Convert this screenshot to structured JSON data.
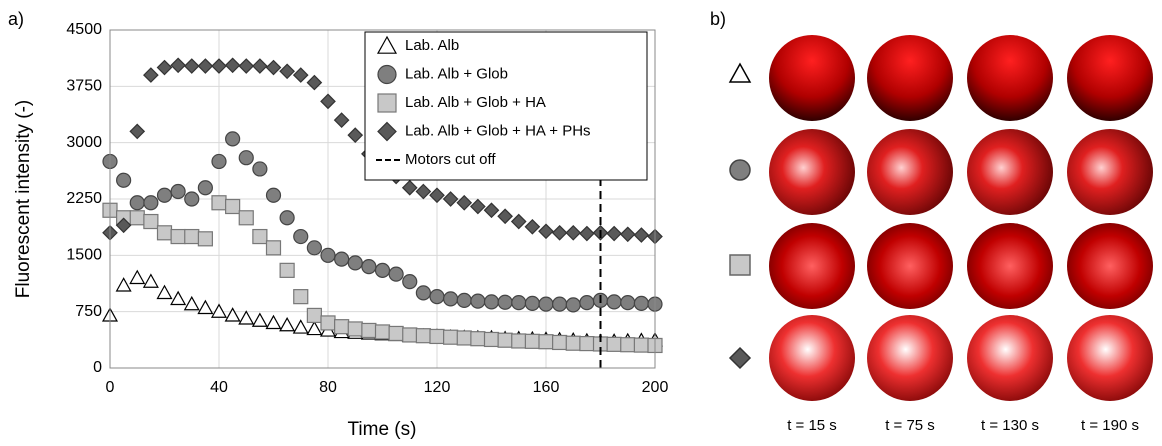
{
  "panel_labels": [
    "a)",
    "b)"
  ],
  "chart_data": {
    "type": "scatter",
    "x_label": "Time (s)",
    "y_label": "Fluorescent intensity (-)",
    "x": [
      0,
      5,
      10,
      15,
      20,
      25,
      30,
      35,
      40,
      45,
      50,
      55,
      60,
      65,
      70,
      75,
      80,
      85,
      90,
      95,
      100,
      105,
      110,
      115,
      120,
      125,
      130,
      135,
      140,
      145,
      150,
      155,
      160,
      165,
      170,
      175,
      180,
      185,
      190,
      195,
      200
    ],
    "series": [
      {
        "name": "Lab. Alb",
        "marker": "triangle",
        "color": "#ffffff",
        "values": [
          700,
          1100,
          1200,
          1150,
          1000,
          920,
          850,
          800,
          750,
          700,
          660,
          630,
          600,
          570,
          540,
          520,
          500,
          480,
          470,
          460,
          450,
          440,
          430,
          425,
          420,
          410,
          405,
          400,
          400,
          390,
          390,
          385,
          380,
          375,
          370,
          360,
          350,
          355,
          360,
          365,
          370
        ]
      },
      {
        "name": "Lab. Alb + Glob",
        "marker": "circle",
        "color": "#7f7f7f",
        "values": [
          2750,
          2500,
          2200,
          2200,
          2300,
          2350,
          2250,
          2400,
          2750,
          3050,
          2800,
          2650,
          2300,
          2000,
          1750,
          1600,
          1500,
          1450,
          1400,
          1350,
          1300,
          1250,
          1150,
          1000,
          950,
          920,
          900,
          890,
          880,
          875,
          870,
          860,
          850,
          850,
          840,
          870,
          900,
          880,
          870,
          860,
          850
        ]
      },
      {
        "name": "Lab. Alb + Glob + HA",
        "marker": "square",
        "color": "#c8c8c8",
        "values": [
          2100,
          2000,
          2000,
          1950,
          1800,
          1750,
          1750,
          1720,
          2200,
          2150,
          2000,
          1750,
          1600,
          1300,
          950,
          700,
          600,
          550,
          520,
          500,
          480,
          460,
          440,
          430,
          420,
          410,
          400,
          390,
          380,
          370,
          360,
          355,
          350,
          340,
          330,
          325,
          320,
          315,
          310,
          305,
          300
        ]
      },
      {
        "name": "Lab. Alb + Glob + HA + PHs",
        "marker": "diamond",
        "color": "#595959",
        "values": [
          1800,
          1900,
          3150,
          3900,
          4000,
          4030,
          4020,
          4020,
          4020,
          4030,
          4020,
          4020,
          4000,
          3950,
          3900,
          3800,
          3550,
          3300,
          3100,
          2850,
          2700,
          2550,
          2400,
          2350,
          2300,
          2250,
          2200,
          2150,
          2100,
          2020,
          1950,
          1880,
          1820,
          1800,
          1800,
          1790,
          1800,
          1790,
          1780,
          1770,
          1750
        ]
      }
    ],
    "vline": {
      "name": "Motors cut off",
      "x": 180
    },
    "xlim": [
      0,
      200
    ],
    "xticks": [
      0,
      40,
      80,
      120,
      160,
      200
    ],
    "ylim": [
      0,
      4500
    ],
    "yticks": [
      0,
      750,
      1500,
      2250,
      3000,
      3750,
      4500
    ],
    "grid": true
  },
  "image_grid": {
    "columns": [
      "t = 15 s",
      "t = 75 s",
      "t = 130 s",
      "t = 190 s"
    ]
  }
}
